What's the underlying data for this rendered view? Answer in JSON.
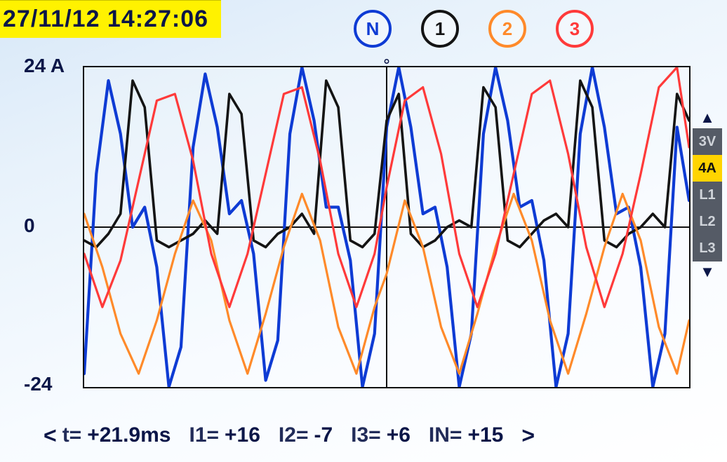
{
  "timestamp": "27/11/12  14:27:06",
  "colors": {
    "blue": "#0e3bd4",
    "black": "#141414",
    "orange": "#ff8a2a",
    "red": "#ff3a3a",
    "axis": "#111111",
    "timestamp_bg": "#fff200",
    "timestamp_fg": "#0b1648",
    "selector_inactive_bg": "#555b66",
    "selector_inactive_fg": "#d0d4da",
    "selector_active_bg": "#ffd400",
    "selector_active_fg": "#111111"
  },
  "channels": [
    {
      "label": "N",
      "color_key": "blue"
    },
    {
      "label": "1",
      "color_key": "black"
    },
    {
      "label": "2",
      "color_key": "orange"
    },
    {
      "label": "3",
      "color_key": "red"
    }
  ],
  "selector": {
    "options": [
      "3V",
      "4A",
      "L1",
      "L2",
      "L3"
    ],
    "active_index": 1
  },
  "y_axis": {
    "label_top": "24 A",
    "label_mid": "0",
    "label_bot": "-24",
    "ylim": [
      -24,
      24
    ]
  },
  "status": {
    "nav_left": "<",
    "nav_right": ">",
    "items": [
      {
        "label": "t=",
        "value": "+21.9ms"
      },
      {
        "label": "I1=",
        "value": "+16"
      },
      {
        "label": "I2=",
        "value": "-7"
      },
      {
        "label": "I3=",
        "value": "+6"
      },
      {
        "label": "IN=",
        "value": "+15"
      }
    ]
  },
  "plot": {
    "type": "line",
    "background": "rgba(255,255,255,0.15)",
    "axis_color": "#111111",
    "line_width": 3.2,
    "x_range": [
      0,
      100
    ],
    "y_range": [
      -24,
      24
    ],
    "cursor_x": 50,
    "cursor_label": "⚬",
    "series": [
      {
        "name": "IN",
        "color_key": "blue",
        "width": 4.2,
        "points": [
          [
            0,
            -22
          ],
          [
            2,
            8
          ],
          [
            4,
            22
          ],
          [
            6,
            14
          ],
          [
            8,
            0
          ],
          [
            10,
            3
          ],
          [
            12,
            -6
          ],
          [
            14,
            -24
          ],
          [
            16,
            -18
          ],
          [
            18,
            12
          ],
          [
            20,
            23
          ],
          [
            22,
            15
          ],
          [
            24,
            2
          ],
          [
            26,
            4
          ],
          [
            28,
            -4
          ],
          [
            30,
            -23
          ],
          [
            32,
            -17
          ],
          [
            34,
            14
          ],
          [
            36,
            24
          ],
          [
            38,
            16
          ],
          [
            40,
            3
          ],
          [
            42,
            3
          ],
          [
            44,
            -5
          ],
          [
            46,
            -24
          ],
          [
            48,
            -16
          ],
          [
            50,
            15
          ],
          [
            52,
            24
          ],
          [
            54,
            15
          ],
          [
            56,
            2
          ],
          [
            58,
            3
          ],
          [
            60,
            -6
          ],
          [
            62,
            -24
          ],
          [
            64,
            -16
          ],
          [
            66,
            14
          ],
          [
            68,
            24
          ],
          [
            70,
            16
          ],
          [
            72,
            3
          ],
          [
            74,
            4
          ],
          [
            76,
            -5
          ],
          [
            78,
            -24
          ],
          [
            80,
            -16
          ],
          [
            82,
            14
          ],
          [
            84,
            24
          ],
          [
            86,
            15
          ],
          [
            88,
            2
          ],
          [
            90,
            3
          ],
          [
            92,
            -6
          ],
          [
            94,
            -24
          ],
          [
            96,
            -16
          ],
          [
            98,
            15
          ],
          [
            100,
            4
          ]
        ]
      },
      {
        "name": "I1",
        "color_key": "black",
        "width": 3.6,
        "points": [
          [
            0,
            -2
          ],
          [
            2,
            -3
          ],
          [
            4,
            -1
          ],
          [
            6,
            2
          ],
          [
            8,
            22
          ],
          [
            10,
            18
          ],
          [
            12,
            -2
          ],
          [
            14,
            -3
          ],
          [
            16,
            -2
          ],
          [
            18,
            -1
          ],
          [
            20,
            1
          ],
          [
            22,
            -1
          ],
          [
            24,
            20
          ],
          [
            26,
            17
          ],
          [
            28,
            -2
          ],
          [
            30,
            -3
          ],
          [
            32,
            -1
          ],
          [
            34,
            0
          ],
          [
            36,
            2
          ],
          [
            38,
            -1
          ],
          [
            40,
            22
          ],
          [
            42,
            18
          ],
          [
            44,
            -2
          ],
          [
            46,
            -3
          ],
          [
            48,
            -1
          ],
          [
            50,
            16
          ],
          [
            52,
            20
          ],
          [
            54,
            -1
          ],
          [
            56,
            -3
          ],
          [
            58,
            -2
          ],
          [
            60,
            0
          ],
          [
            62,
            1
          ],
          [
            64,
            0
          ],
          [
            66,
            21
          ],
          [
            68,
            18
          ],
          [
            70,
            -2
          ],
          [
            72,
            -3
          ],
          [
            74,
            -1
          ],
          [
            76,
            1
          ],
          [
            78,
            2
          ],
          [
            80,
            0
          ],
          [
            82,
            22
          ],
          [
            84,
            18
          ],
          [
            86,
            -2
          ],
          [
            88,
            -3
          ],
          [
            90,
            -1
          ],
          [
            92,
            0
          ],
          [
            94,
            2
          ],
          [
            96,
            0
          ],
          [
            98,
            20
          ],
          [
            100,
            16
          ]
        ]
      },
      {
        "name": "I2",
        "color_key": "orange",
        "width": 3.2,
        "points": [
          [
            0,
            2
          ],
          [
            3,
            -6
          ],
          [
            6,
            -16
          ],
          [
            9,
            -22
          ],
          [
            12,
            -14
          ],
          [
            15,
            -4
          ],
          [
            18,
            4
          ],
          [
            21,
            -2
          ],
          [
            24,
            -14
          ],
          [
            27,
            -22
          ],
          [
            30,
            -13
          ],
          [
            33,
            -3
          ],
          [
            36,
            5
          ],
          [
            39,
            -2
          ],
          [
            42,
            -15
          ],
          [
            45,
            -22
          ],
          [
            48,
            -12
          ],
          [
            50,
            -7
          ],
          [
            53,
            4
          ],
          [
            56,
            -3
          ],
          [
            59,
            -15
          ],
          [
            62,
            -22
          ],
          [
            65,
            -13
          ],
          [
            68,
            -3
          ],
          [
            71,
            5
          ],
          [
            74,
            -2
          ],
          [
            77,
            -14
          ],
          [
            80,
            -22
          ],
          [
            83,
            -13
          ],
          [
            86,
            -3
          ],
          [
            89,
            5
          ],
          [
            92,
            -2
          ],
          [
            95,
            -15
          ],
          [
            98,
            -22
          ],
          [
            100,
            -14
          ]
        ]
      },
      {
        "name": "I3",
        "color_key": "red",
        "width": 3.2,
        "points": [
          [
            0,
            -4
          ],
          [
            3,
            -12
          ],
          [
            6,
            -5
          ],
          [
            9,
            7
          ],
          [
            12,
            19
          ],
          [
            15,
            20
          ],
          [
            18,
            10
          ],
          [
            21,
            -4
          ],
          [
            24,
            -12
          ],
          [
            27,
            -4
          ],
          [
            30,
            8
          ],
          [
            33,
            20
          ],
          [
            36,
            21
          ],
          [
            39,
            10
          ],
          [
            42,
            -4
          ],
          [
            45,
            -12
          ],
          [
            48,
            -4
          ],
          [
            50,
            6
          ],
          [
            53,
            19
          ],
          [
            56,
            21
          ],
          [
            59,
            11
          ],
          [
            62,
            -4
          ],
          [
            65,
            -12
          ],
          [
            68,
            -4
          ],
          [
            71,
            8
          ],
          [
            74,
            20
          ],
          [
            77,
            22
          ],
          [
            80,
            11
          ],
          [
            83,
            -3
          ],
          [
            86,
            -12
          ],
          [
            89,
            -4
          ],
          [
            92,
            8
          ],
          [
            95,
            21
          ],
          [
            98,
            24
          ],
          [
            100,
            12
          ]
        ]
      }
    ]
  }
}
